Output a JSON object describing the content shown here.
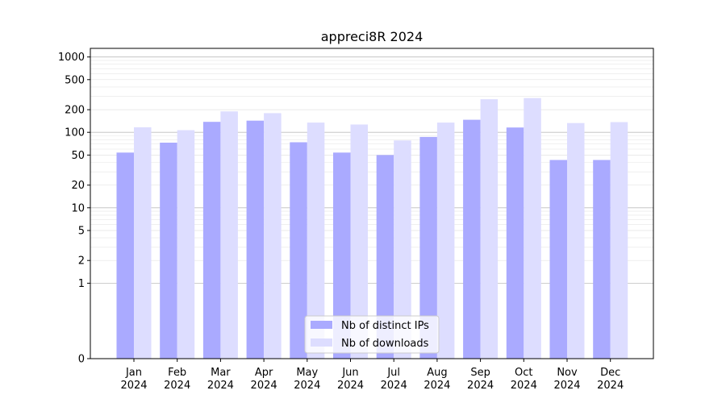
{
  "chart_data": {
    "type": "bar",
    "title": "appreci8R 2024",
    "xlabel": "",
    "ylabel": "",
    "yscale": "symlog",
    "ylim": [
      0,
      1300
    ],
    "yticks": [
      0,
      1,
      2,
      5,
      10,
      20,
      50,
      100,
      200,
      500,
      1000
    ],
    "grid": true,
    "legend_position": "bottom-center",
    "categories": [
      {
        "month": "Jan",
        "year": "2024"
      },
      {
        "month": "Feb",
        "year": "2024"
      },
      {
        "month": "Mar",
        "year": "2024"
      },
      {
        "month": "Apr",
        "year": "2024"
      },
      {
        "month": "May",
        "year": "2024"
      },
      {
        "month": "Jun",
        "year": "2024"
      },
      {
        "month": "Jul",
        "year": "2024"
      },
      {
        "month": "Aug",
        "year": "2024"
      },
      {
        "month": "Sep",
        "year": "2024"
      },
      {
        "month": "Oct",
        "year": "2024"
      },
      {
        "month": "Nov",
        "year": "2024"
      },
      {
        "month": "Dec",
        "year": "2024"
      }
    ],
    "series": [
      {
        "name": "Nb of distinct IPs",
        "color": "#aaaaff",
        "values": [
          54,
          73,
          138,
          143,
          74,
          54,
          50,
          87,
          147,
          116,
          43,
          43
        ]
      },
      {
        "name": "Nb of downloads",
        "color": "#ddddff",
        "values": [
          117,
          107,
          190,
          180,
          135,
          127,
          78,
          135,
          275,
          285,
          133,
          137
        ]
      }
    ]
  }
}
